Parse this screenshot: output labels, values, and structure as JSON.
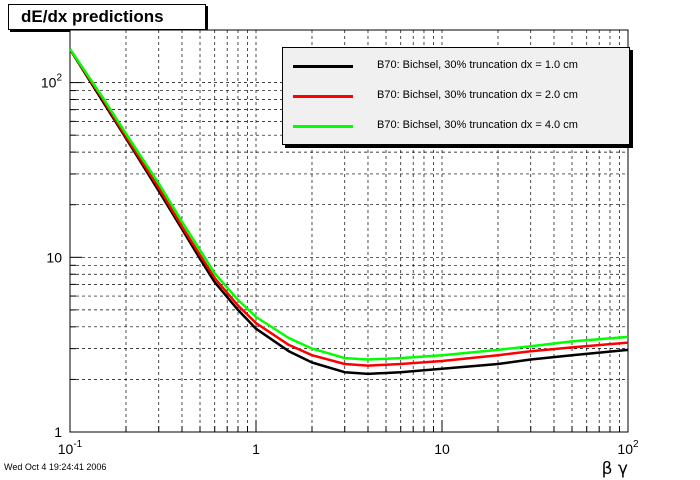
{
  "footer_timestamp": "Wed Oct  4 19:24:41 2006",
  "chart_data": {
    "type": "line",
    "title": "dE/dx predictions",
    "xlabel": "β γ",
    "ylabel": "",
    "x_scale": "log",
    "y_scale": "log",
    "xlim": [
      0.1,
      100
    ],
    "ylim": [
      1,
      200
    ],
    "grid": true,
    "legend_position": "top-right",
    "x_tick_labels": [
      {
        "value": 0.1,
        "base": "10",
        "exp": "-1"
      },
      {
        "value": 1,
        "base": "1",
        "exp": ""
      },
      {
        "value": 10,
        "base": "10",
        "exp": ""
      },
      {
        "value": 100,
        "base": "10",
        "exp": "2"
      }
    ],
    "y_tick_labels": [
      {
        "value": 1,
        "base": "1",
        "exp": ""
      },
      {
        "value": 10,
        "base": "10",
        "exp": ""
      },
      {
        "value": 100,
        "base": "10",
        "exp": "2"
      }
    ],
    "series": [
      {
        "name": "B70: Bichsel, 30% truncation dx = 1.0 cm",
        "color": "#000000",
        "x": [
          0.1,
          0.15,
          0.2,
          0.3,
          0.4,
          0.5,
          0.6,
          0.8,
          1,
          1.5,
          2,
          3,
          4,
          6,
          10,
          20,
          30,
          50,
          100
        ],
        "y": [
          155,
          78,
          48,
          24,
          14.5,
          9.8,
          7.2,
          5.0,
          3.9,
          2.9,
          2.5,
          2.2,
          2.15,
          2.2,
          2.3,
          2.45,
          2.6,
          2.75,
          2.95
        ]
      },
      {
        "name": "B70: Bichsel, 30% truncation dx = 2.0 cm",
        "color": "#ff0000",
        "x": [
          0.1,
          0.15,
          0.2,
          0.3,
          0.4,
          0.5,
          0.6,
          0.8,
          1,
          1.5,
          2,
          3,
          4,
          6,
          10,
          20,
          30,
          50,
          100
        ],
        "y": [
          155,
          80,
          49,
          25,
          15,
          10.3,
          7.6,
          5.3,
          4.2,
          3.15,
          2.75,
          2.45,
          2.4,
          2.45,
          2.55,
          2.75,
          2.9,
          3.05,
          3.25
        ]
      },
      {
        "name": "B70: Bichsel, 30% truncation dx = 4.0 cm",
        "color": "#00ff00",
        "x": [
          0.1,
          0.15,
          0.2,
          0.3,
          0.4,
          0.5,
          0.6,
          0.8,
          1,
          1.5,
          2,
          3,
          4,
          6,
          10,
          20,
          30,
          50,
          100
        ],
        "y": [
          156,
          82,
          51,
          26.5,
          16,
          11,
          8.1,
          5.7,
          4.55,
          3.45,
          3.0,
          2.65,
          2.6,
          2.65,
          2.75,
          2.95,
          3.1,
          3.3,
          3.5
        ]
      }
    ]
  }
}
